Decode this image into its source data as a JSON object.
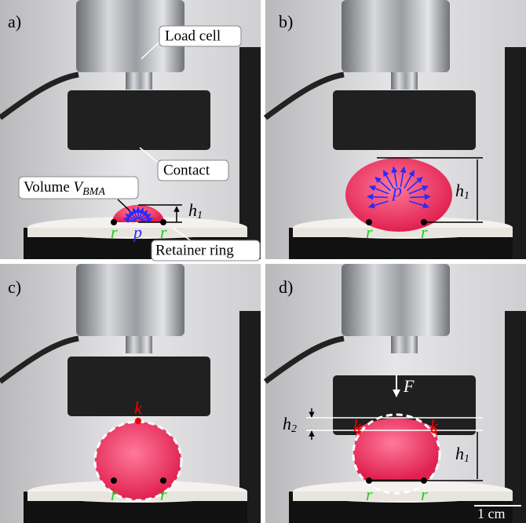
{
  "panels": [
    {
      "label": "a)",
      "load_cell": "Load cell",
      "contact": "Contact",
      "volume": {
        "text": "Volume",
        "symbol": "V",
        "subscript": "BMA"
      },
      "height": {
        "symbol": "h",
        "subscript": "1"
      },
      "retainer_ring": "Retainer ring",
      "points": [
        "r",
        "p",
        "r"
      ]
    },
    {
      "label": "b)",
      "pressure": "p",
      "height": {
        "symbol": "h",
        "subscript": "1"
      },
      "points": [
        "r",
        "r"
      ]
    },
    {
      "label": "c)",
      "curvature": "k",
      "points": [
        "r",
        "r"
      ]
    },
    {
      "label": "d)",
      "force": "F",
      "height2": {
        "symbol": "h",
        "subscript": "2"
      },
      "curvature": [
        "k",
        "k"
      ],
      "height": {
        "symbol": "h",
        "subscript": "1"
      },
      "points": [
        "r",
        "r"
      ],
      "scale_bar": "1 cm"
    }
  ]
}
